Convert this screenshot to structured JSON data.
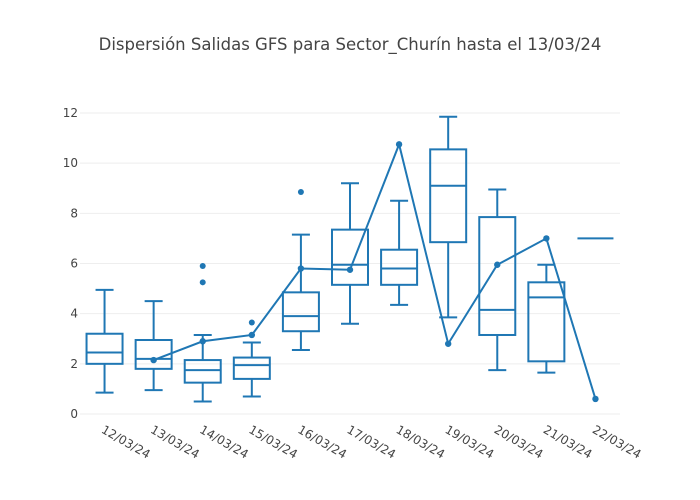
{
  "chart_data": {
    "type": "box",
    "title": "Dispersión Salidas GFS para Sector_Churín hasta el 13/03/24",
    "xlabel": "",
    "ylabel": "",
    "ylim": [
      0,
      12
    ],
    "yticks": [
      "0",
      "2",
      "4",
      "6",
      "8",
      "10",
      "12"
    ],
    "grid": true,
    "color": "#1f77b4",
    "categories": [
      "12/03/24",
      "13/03/24",
      "14/03/24",
      "15/03/24",
      "16/03/24",
      "17/03/24",
      "18/03/24",
      "19/03/24",
      "20/03/24",
      "21/03/24",
      "22/03/24"
    ],
    "boxes": [
      {
        "low": 0.85,
        "q1": 2.0,
        "median": 2.45,
        "q3": 3.2,
        "high": 4.95,
        "outliers": []
      },
      {
        "low": 0.95,
        "q1": 1.8,
        "median": 2.2,
        "q3": 2.95,
        "high": 4.5,
        "outliers": []
      },
      {
        "low": 0.5,
        "q1": 1.25,
        "median": 1.75,
        "q3": 2.15,
        "high": 3.15,
        "outliers": [
          5.25,
          5.9
        ]
      },
      {
        "low": 0.7,
        "q1": 1.4,
        "median": 1.95,
        "q3": 2.25,
        "high": 2.85,
        "outliers": [
          3.65
        ]
      },
      {
        "low": 2.55,
        "q1": 3.3,
        "median": 3.9,
        "q3": 4.85,
        "high": 7.15,
        "outliers": [
          8.85
        ]
      },
      {
        "low": 3.6,
        "q1": 5.15,
        "median": 5.95,
        "q3": 7.35,
        "high": 9.2,
        "outliers": []
      },
      {
        "low": 4.35,
        "q1": 5.15,
        "median": 5.8,
        "q3": 6.55,
        "high": 8.5,
        "outliers": []
      },
      {
        "low": 3.85,
        "q1": 6.85,
        "median": 9.1,
        "q3": 10.55,
        "high": 11.85,
        "outliers": []
      },
      {
        "low": 1.75,
        "q1": 3.15,
        "median": 4.15,
        "q3": 7.85,
        "high": 8.95,
        "outliers": []
      },
      {
        "low": 1.65,
        "q1": 2.1,
        "median": 4.65,
        "q3": 5.25,
        "high": 5.95,
        "outliers": []
      },
      {
        "low": 7.0,
        "q1": 7.0,
        "median": 7.0,
        "q3": 7.0,
        "high": 7.0,
        "outliers": []
      }
    ],
    "line_series": {
      "categories": [
        "13/03/24",
        "14/03/24",
        "15/03/24",
        "16/03/24",
        "17/03/24",
        "18/03/24",
        "19/03/24",
        "20/03/24",
        "21/03/24",
        "22/03/24"
      ],
      "values": [
        2.15,
        2.9,
        3.15,
        5.8,
        5.75,
        10.75,
        2.8,
        5.95,
        7.0,
        0.6
      ]
    }
  }
}
